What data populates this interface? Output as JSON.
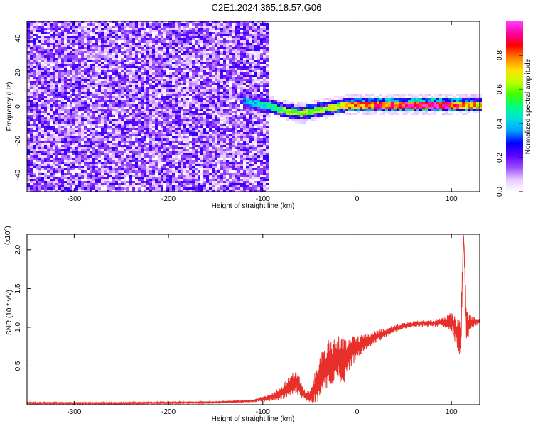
{
  "title": "C2E1.2024.365.18.57.G06",
  "chart_data": [
    {
      "type": "heatmap",
      "name": "spectrogram",
      "xlabel": "Height of straight line (km)",
      "ylabel": "Frequency (Hz)",
      "xlim": [
        -350,
        130
      ],
      "ylim": [
        -50,
        50
      ],
      "xticks": [
        -300,
        -200,
        -100,
        0,
        100
      ],
      "yticks": [
        -40,
        -20,
        0,
        20,
        40
      ],
      "colorbar": {
        "label": "Normalized spectral amplitude",
        "range": [
          0,
          1
        ],
        "ticks": [
          "0.0",
          "0.2",
          "0.4",
          "0.6",
          "0.8"
        ],
        "colors": [
          "#ffffff",
          "#e6c8ff",
          "#9a4dff",
          "#5a00ff",
          "#0000ff",
          "#00a0ff",
          "#00e0e0",
          "#00ff80",
          "#40ff00",
          "#c0ff00",
          "#ffe000",
          "#ff8000",
          "#ff0000",
          "#ff00a0",
          "#ff40ff"
        ]
      },
      "dominant_frequency_track": {
        "x": [
          -120,
          -110,
          -100,
          -90,
          -80,
          -70,
          -60,
          -50,
          -40,
          -30,
          -20,
          -10,
          0,
          20,
          40,
          60,
          80,
          100,
          120,
          130
        ],
        "y": [
          3,
          2,
          1,
          0,
          -2,
          -3,
          -4,
          -3,
          -2,
          -1,
          0,
          1,
          1,
          1,
          1,
          1,
          1,
          1,
          1,
          1
        ],
        "strength": [
          0.35,
          0.4,
          0.45,
          0.5,
          0.55,
          0.6,
          0.65,
          0.62,
          0.6,
          0.62,
          0.7,
          0.75,
          0.78,
          0.82,
          0.85,
          0.9,
          0.95,
          0.85,
          0.75,
          0.7
        ]
      },
      "noise_region": {
        "x_from": -350,
        "x_to": -95,
        "level": 0.15
      }
    },
    {
      "type": "line",
      "name": "snr",
      "xlabel": "Height of straight line (km)",
      "ylabel": "SNR (10 * v/v)",
      "yscale_label": "(x10",
      "yscale_exponent": "4",
      "xlim": [
        -350,
        130
      ],
      "ylim": [
        0,
        2.2
      ],
      "xticks": [
        -300,
        -200,
        -100,
        0,
        100
      ],
      "yticks": [
        0.5,
        1.0,
        1.5,
        2.0
      ],
      "color": "#e8302a",
      "x": [
        -350,
        -250,
        -150,
        -110,
        -90,
        -80,
        -70,
        -65,
        -60,
        -55,
        -50,
        -45,
        -40,
        -35,
        -30,
        -25,
        -20,
        -15,
        -10,
        -5,
        0,
        10,
        20,
        30,
        40,
        50,
        60,
        70,
        80,
        90,
        100,
        105,
        110,
        113,
        116,
        120,
        125,
        130
      ],
      "y": [
        0.02,
        0.02,
        0.03,
        0.05,
        0.1,
        0.15,
        0.25,
        0.3,
        0.2,
        0.12,
        0.1,
        0.2,
        0.35,
        0.45,
        0.5,
        0.55,
        0.6,
        0.55,
        0.6,
        0.7,
        0.75,
        0.82,
        0.88,
        0.93,
        0.98,
        1.02,
        1.04,
        1.05,
        1.05,
        1.06,
        1.08,
        0.95,
        0.9,
        2.2,
        1.0,
        1.05,
        1.07,
        1.08
      ],
      "noise": [
        0.01,
        0.01,
        0.01,
        0.02,
        0.05,
        0.1,
        0.15,
        0.18,
        0.12,
        0.06,
        0.08,
        0.2,
        0.3,
        0.35,
        0.35,
        0.35,
        0.3,
        0.3,
        0.25,
        0.2,
        0.15,
        0.1,
        0.08,
        0.06,
        0.05,
        0.04,
        0.04,
        0.04,
        0.05,
        0.06,
        0.12,
        0.2,
        0.3,
        0.05,
        0.25,
        0.12,
        0.06,
        0.04
      ]
    }
  ]
}
